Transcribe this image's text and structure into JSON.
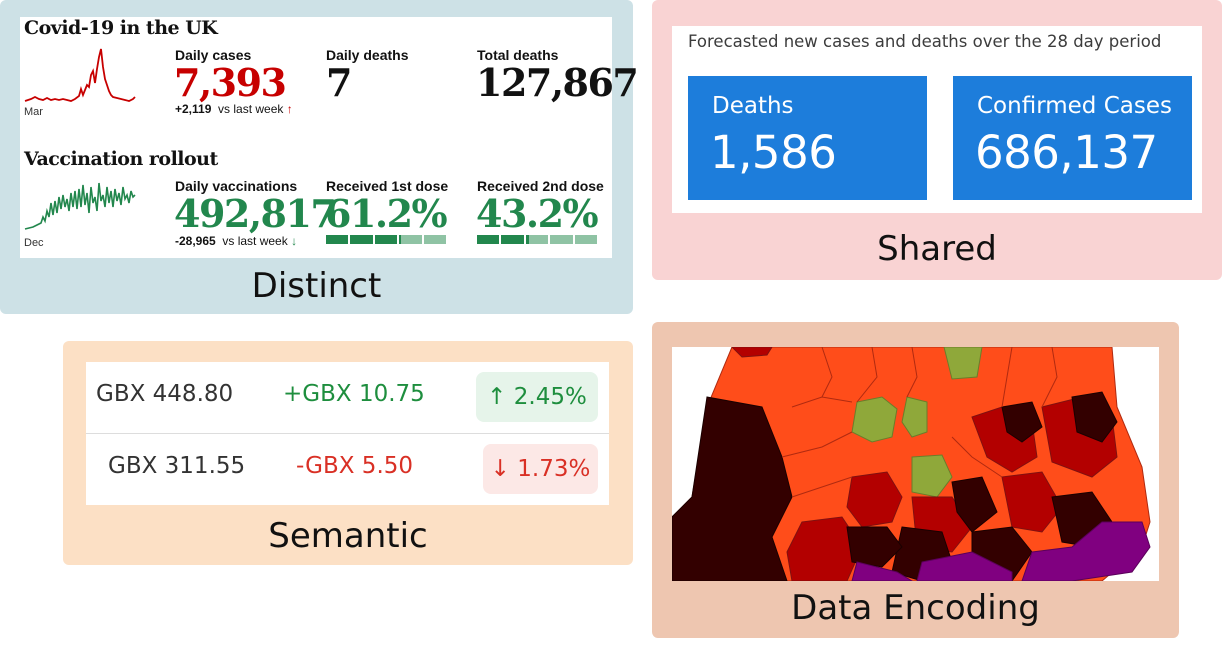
{
  "panels": {
    "distinct": {
      "caption": "Distinct",
      "covid": {
        "title": "Covid-19 in the UK",
        "chart_axis_label": "Mar",
        "daily_cases": {
          "label": "Daily cases",
          "value": "7,393",
          "delta": "+2,119",
          "vs": "vs last week",
          "arrow": "↑"
        },
        "daily_deaths": {
          "label": "Daily deaths",
          "value": "7"
        },
        "total_deaths": {
          "label": "Total deaths",
          "value": "127,867"
        },
        "vaccination_title": "Vaccination rollout",
        "vacc_axis_label": "Dec",
        "daily_vaccinations": {
          "label": "Daily vaccinations",
          "value": "492,817",
          "delta": "-28,965",
          "vs": "vs last week",
          "arrow": "↓"
        },
        "first_dose": {
          "label": "Received 1st dose",
          "value": "61.2%",
          "fraction": 0.612
        },
        "second_dose": {
          "label": "Received 2nd dose",
          "value": "43.2%",
          "fraction": 0.432
        },
        "colors": {
          "cases": "#c70000",
          "vaccine": "#22874d",
          "dark_text": "#121212",
          "bar_light": "#8fc3a4"
        }
      }
    },
    "shared": {
      "caption": "Shared",
      "heading": "Forecasted new cases and deaths over the 28 day period",
      "cards": [
        {
          "label": "Deaths",
          "value": "1,586"
        },
        {
          "label": "Confirmed Cases",
          "value": "686,137"
        }
      ],
      "colors": {
        "card": "#1d7ddb"
      }
    },
    "semantic": {
      "caption": "Semantic",
      "rows": [
        {
          "price": "GBX 448.80",
          "change": "+GBX 10.75",
          "pct": "↑ 2.45%",
          "direction": "up"
        },
        {
          "price": "GBX 311.55",
          "change": "-GBX 5.50",
          "pct": "↓ 1.73%",
          "direction": "down"
        }
      ],
      "colors": {
        "up": "#1e8e3e",
        "up_bg": "#e6f4ea",
        "down": "#d93025",
        "down_bg": "#fce8e6"
      }
    },
    "data_encoding": {
      "caption": "Data Encoding",
      "map_legend_colors": [
        "#330000",
        "#b30000",
        "#ff4d1a",
        "#8fa83a",
        "#800080"
      ]
    }
  }
}
